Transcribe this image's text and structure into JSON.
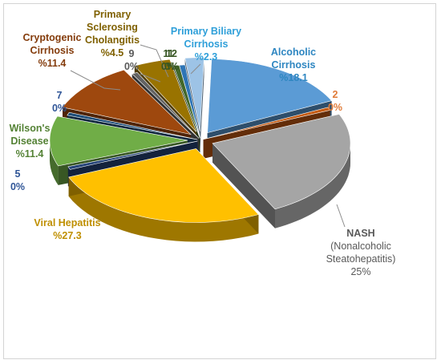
{
  "chart_data": {
    "type": "pie",
    "style": "exploded-3d",
    "legend": "none",
    "slices": [
      {
        "id": "alcoholic",
        "name": "Alcoholic Cirrhosis",
        "value_label": "%18.1",
        "value": 18.1,
        "color": "#5b9bd5",
        "label_color": "#2e86c1"
      },
      {
        "id": "lab2",
        "name": "2",
        "value_label": "0%",
        "value": 0,
        "color": "#c55a11",
        "label_color": "#e07b39"
      },
      {
        "id": "nash",
        "name": "NASH (Nonalcoholic Steatohepatitis)",
        "name_lines": [
          "NASH",
          "(Nonalcoholic",
          "Steatohepatitis)"
        ],
        "value_label": "25%",
        "value": 25,
        "color": "#a5a5a5",
        "label_color": "#595959"
      },
      {
        "id": "viral",
        "name": "Viral Hepatitis",
        "value_label": "%27.3",
        "value": 27.3,
        "color": "#ffc000",
        "label_color": "#bf8f00"
      },
      {
        "id": "lab5",
        "name": "5",
        "value_label": "0%",
        "value": 0,
        "color": "#264478",
        "label_color": "#2f5597"
      },
      {
        "id": "wilson",
        "name": "Wilson's Disease",
        "name_lines": [
          "Wilson's",
          "Disease"
        ],
        "value_label": "%11.4",
        "value": 11.4,
        "color": "#70ad47",
        "label_color": "#548235"
      },
      {
        "id": "lab7",
        "name": "7",
        "value_label": "0%",
        "value": 0,
        "color": "#1f4e79",
        "label_color": "#2f5597"
      },
      {
        "id": "cryptogenic",
        "name": "Cryptogenic Cirrhosis",
        "name_lines": [
          "Cryptogenic",
          "Cirrhosis"
        ],
        "value_label": "%11.4",
        "value": 11.4,
        "color": "#9e480e",
        "label_color": "#843c0c"
      },
      {
        "id": "lab9",
        "name": "9",
        "value_label": "0%",
        "value": 0,
        "color": "#636363",
        "label_color": "#595959"
      },
      {
        "id": "psc",
        "name": "Primary Sclerosing Cholangitis",
        "name_lines": [
          "Primary",
          "Sclerosing",
          "Cholangitis"
        ],
        "value_label": "%4.5",
        "value": 4.5,
        "color": "#997300",
        "label_color": "#7f6000"
      },
      {
        "id": "lab11",
        "name": "11",
        "value_label": "0%",
        "value": 0,
        "color": "#43682b",
        "label_color": "#375623"
      },
      {
        "id": "lab12",
        "name": "12",
        "value_label": "0%",
        "value": 0,
        "color": "#2e75b6",
        "label_color": "#375623"
      },
      {
        "id": "pbc",
        "name": "Primary Biliary Cirrhosis",
        "name_lines": [
          "Primary Biliary",
          "Cirrhosis"
        ],
        "value_label": "%2.3",
        "value": 2.3,
        "color": "#9dc3e6",
        "label_color": "#2e9fd9"
      }
    ]
  }
}
